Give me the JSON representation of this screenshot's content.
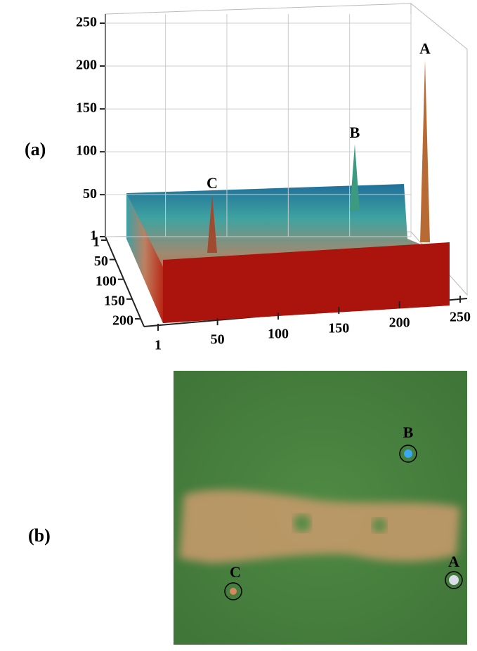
{
  "panel_a": {
    "label": "(a)",
    "z_ticks": [
      1,
      50,
      100,
      150,
      200,
      250
    ],
    "y_ticks": [
      1,
      50,
      100,
      150,
      200
    ],
    "x_ticks": [
      1,
      50,
      100,
      150,
      200,
      250
    ],
    "peaks": [
      {
        "name": "A",
        "height": 207
      },
      {
        "name": "B",
        "height": 109
      },
      {
        "name": "C",
        "height": 50
      }
    ]
  },
  "panel_b": {
    "label": "(b)",
    "points": [
      {
        "name": "B"
      },
      {
        "name": "A"
      },
      {
        "name": "C"
      }
    ]
  }
}
